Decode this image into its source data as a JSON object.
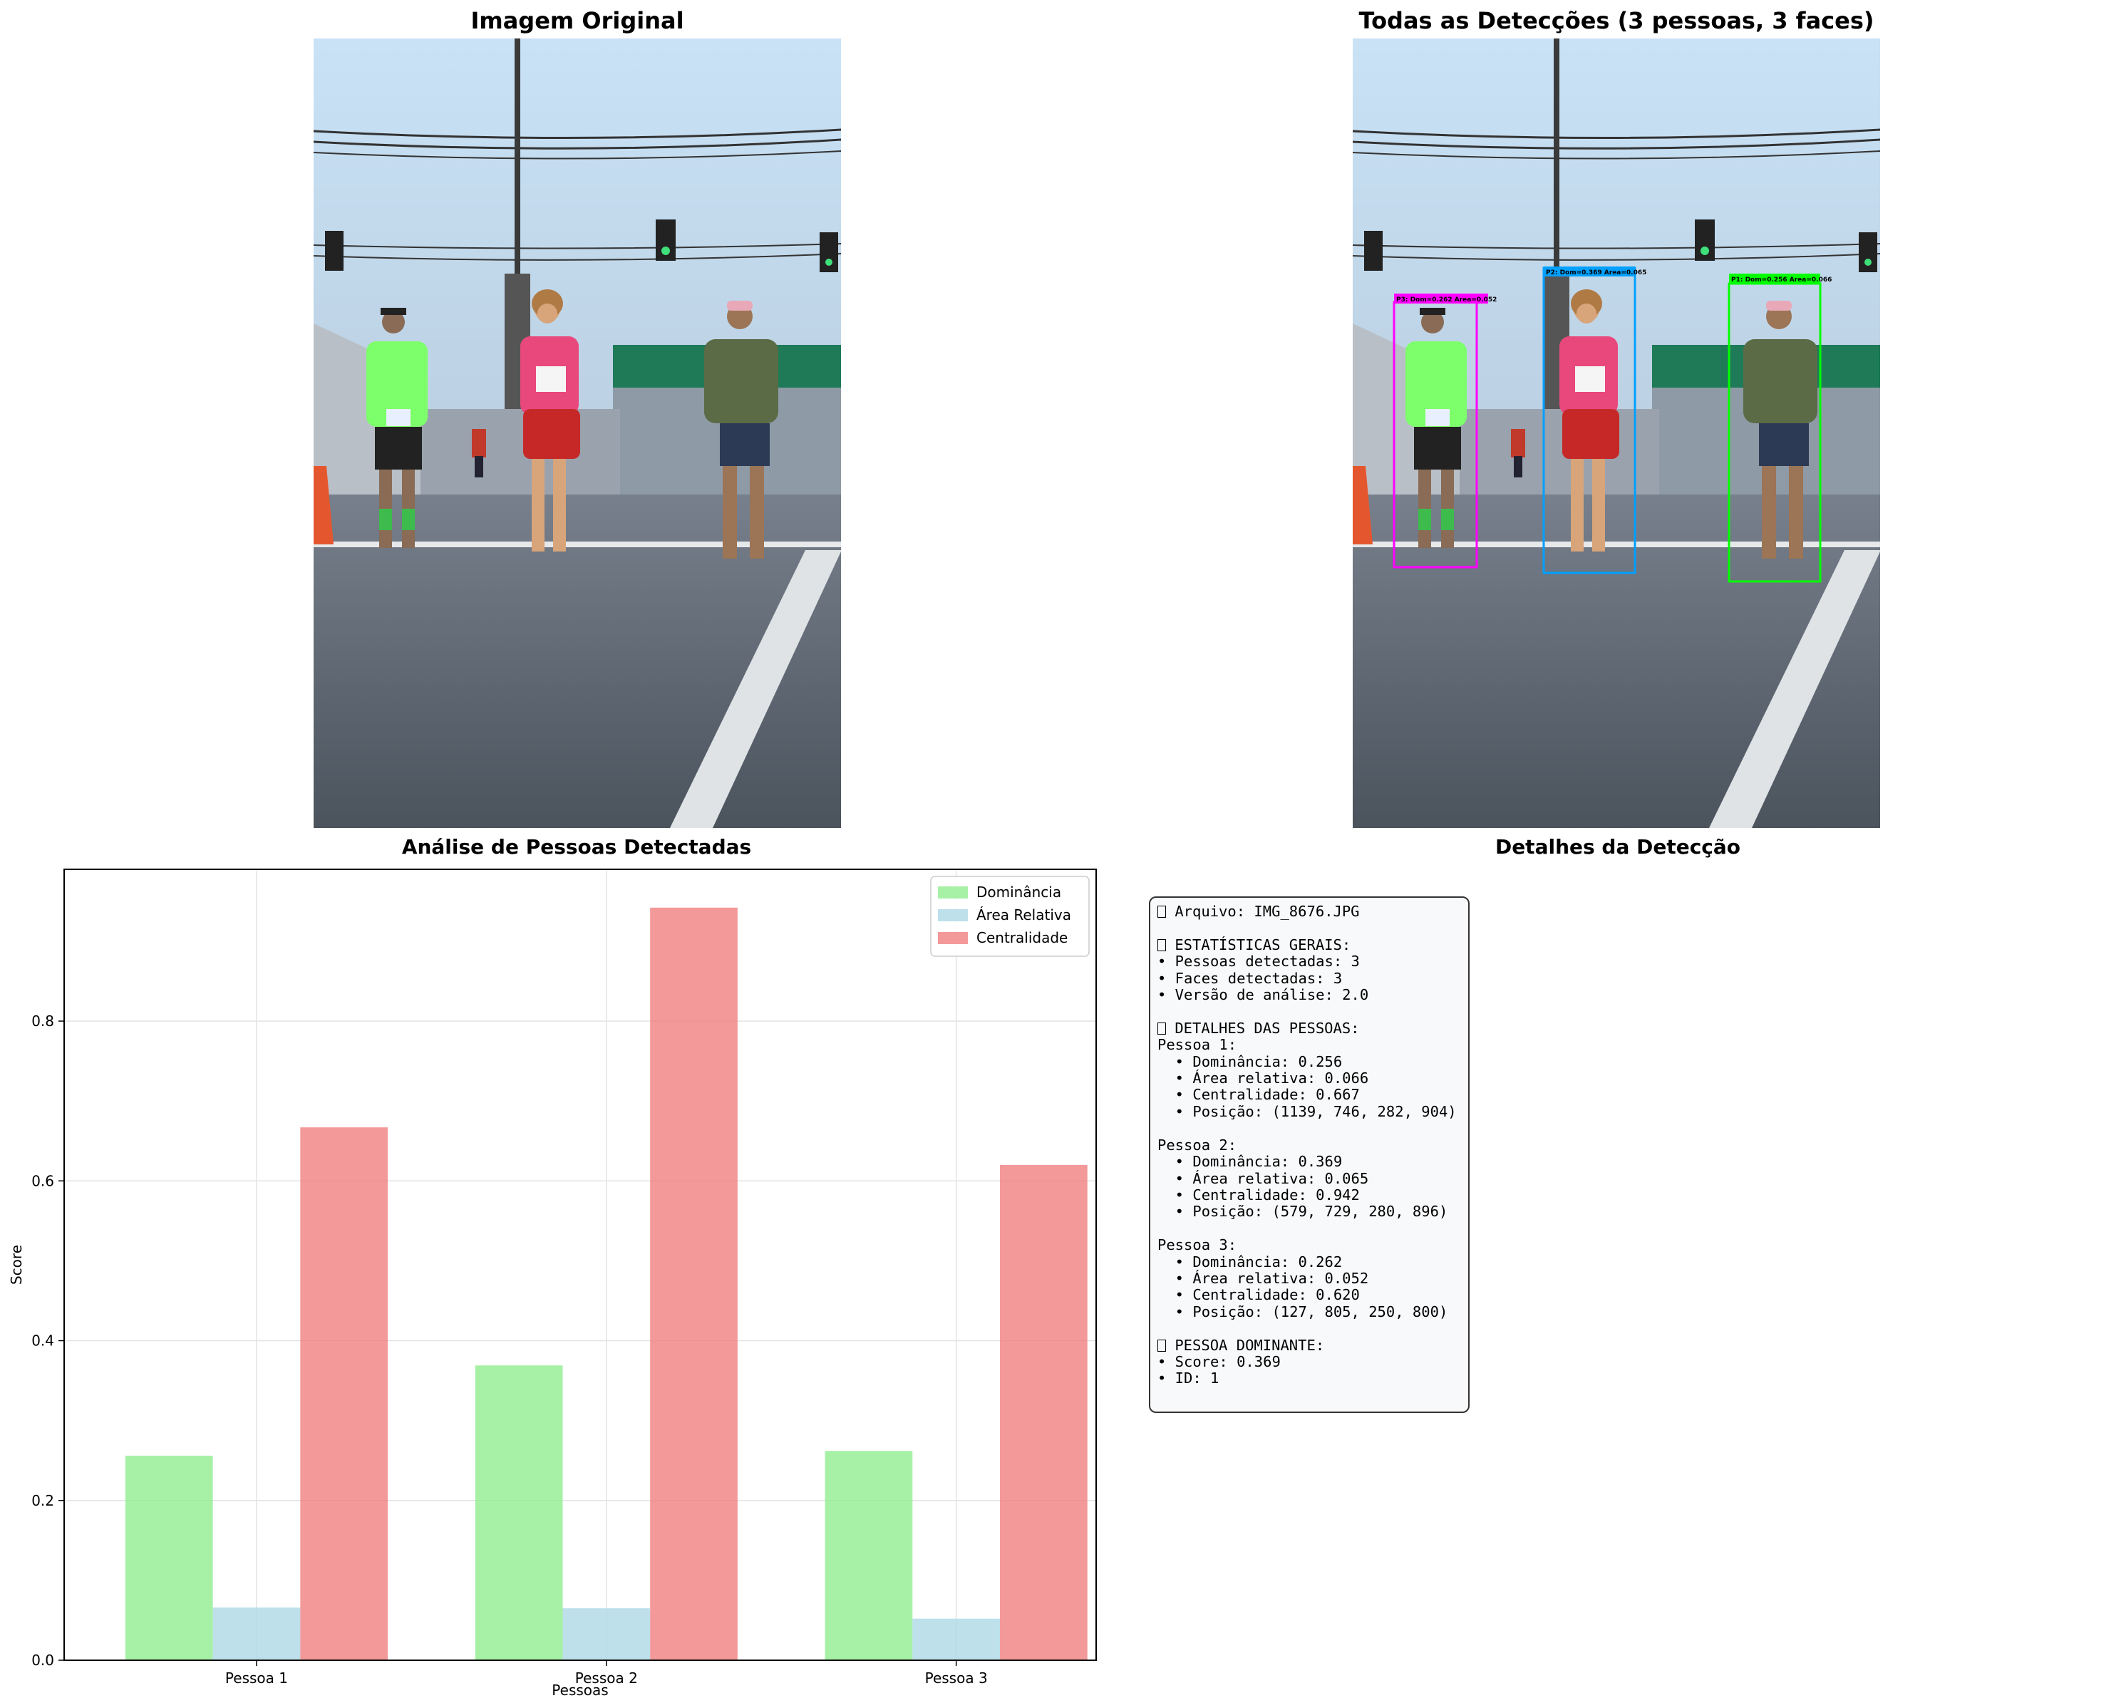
{
  "titles": {
    "original": "Imagem Original",
    "detections": "Todas as Detecções (3 pessoas, 3 faces)",
    "chart": "Análise de Pessoas Detectadas",
    "details": "Detalhes da Detecção"
  },
  "detection_labels": [
    {
      "text": "P1: Dom=0.256 Area=0.066",
      "color": "#00ff00"
    },
    {
      "text": "P2: Dom=0.369 Area=0.065",
      "color": "#00a0ff"
    },
    {
      "text": "P3: Dom=0.262 Area=0.052",
      "color": "#ff00ff"
    }
  ],
  "chart_data": {
    "type": "bar",
    "categories": [
      "Pessoa 1",
      "Pessoa 2",
      "Pessoa 3"
    ],
    "series": [
      {
        "name": "Dominância",
        "values": [
          0.256,
          0.369,
          0.262
        ],
        "color": "#90ee90"
      },
      {
        "name": "Área Relativa",
        "values": [
          0.066,
          0.065,
          0.052
        ],
        "color": "#add8e6"
      },
      {
        "name": "Centralidade",
        "values": [
          0.667,
          0.942,
          0.62
        ],
        "color": "#f08080"
      }
    ],
    "title": "Análise de Pessoas Detectadas",
    "xlabel": "Pessoas",
    "ylabel": "Score",
    "ylim": [
      0,
      0.99
    ],
    "yticks": [
      0.0,
      0.2,
      0.4,
      0.6,
      0.8
    ],
    "grid": true,
    "legend": "top-right"
  },
  "details": {
    "arquivo": "Arquivo: IMG_8676.JPG",
    "gerais_header": "ESTATÍSTICAS GERAIS:",
    "gerais_lines": [
      "• Pessoas detectadas: 3",
      "• Faces detectadas: 3",
      "• Versão de análise: 2.0"
    ],
    "pessoas_header": "DETALHES DAS PESSOAS:",
    "pessoas": [
      {
        "title": "Pessoa 1:",
        "lines": [
          "  • Dominância: 0.256",
          "  • Área relativa: 0.066",
          "  • Centralidade: 0.667",
          "  • Posição: (1139, 746, 282, 904)"
        ]
      },
      {
        "title": "Pessoa 2:",
        "lines": [
          "  • Dominância: 0.369",
          "  • Área relativa: 0.065",
          "  • Centralidade: 0.942",
          "  • Posição: (579, 729, 280, 896)"
        ]
      },
      {
        "title": "Pessoa 3:",
        "lines": [
          "  • Dominância: 0.262",
          "  • Área relativa: 0.052",
          "  • Centralidade: 0.620",
          "  • Posição: (127, 805, 250, 800)"
        ]
      }
    ],
    "dominante_header": "PESSOA DOMINANTE:",
    "dominante_lines": [
      "• Score: 0.369",
      "• ID: 1"
    ]
  }
}
